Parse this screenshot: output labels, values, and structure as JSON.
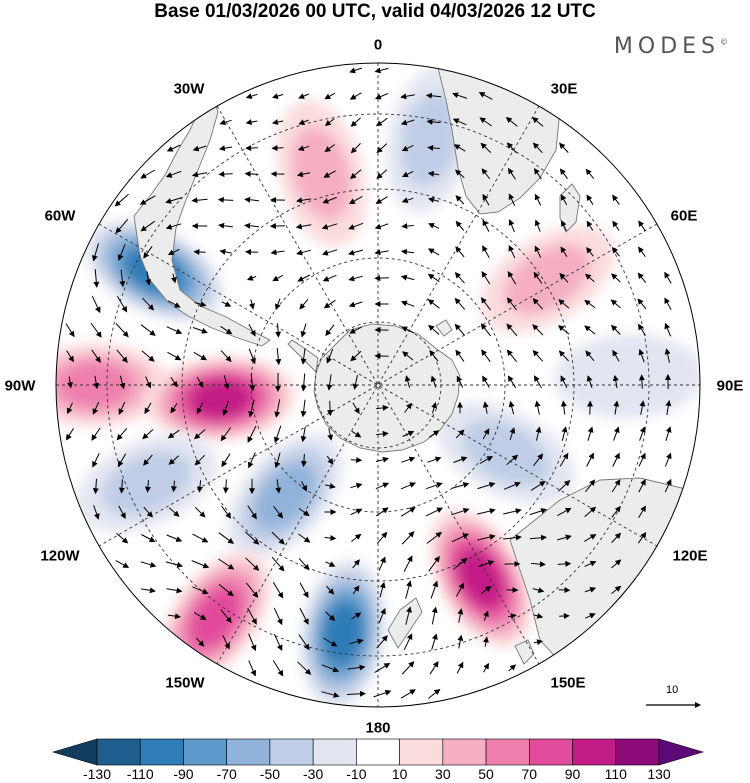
{
  "header": {
    "title": "Base 01/03/2026 00 UTC, valid 04/03/2026 12 UTC",
    "logo_text": "MODES",
    "logo_mark": "©"
  },
  "map": {
    "projection": "south polar stereographic",
    "lon_labels": {
      "l0": "0",
      "l30e": "30E",
      "l60e": "60E",
      "l90e": "90E",
      "l120e": "120E",
      "l150e": "150E",
      "l180": "180",
      "l150w": "150W",
      "l120w": "120W",
      "l90w": "90W",
      "l60w": "60W",
      "l30w": "30W"
    },
    "colors": {
      "land": "#ececec",
      "coast": "#777777",
      "grid": "#333333",
      "ocean": "#ffffff"
    }
  },
  "anomalies": [
    {
      "name": "pos-south-atlantic",
      "value": 50,
      "lon": -15,
      "r": 0.68
    },
    {
      "name": "neg-south-atlantic-east",
      "value": -40,
      "lon": 12,
      "r": 0.78
    },
    {
      "name": "pos-indian-ocean",
      "value": 40,
      "lon": 58,
      "r": 0.62
    },
    {
      "name": "neg-amundsen-drake",
      "value": -100,
      "lon": -63,
      "r": 0.78
    },
    {
      "name": "pos-se-pacific",
      "value": 70,
      "lon": -90,
      "r": 0.88
    },
    {
      "name": "pos-bellingshausen",
      "value": 100,
      "lon": -95,
      "r": 0.49
    },
    {
      "name": "neg-pacific-1",
      "value": -50,
      "lon": -113,
      "r": 0.78
    },
    {
      "name": "neg-pacific-2",
      "value": -60,
      "lon": -140,
      "r": 0.45
    },
    {
      "name": "pos-pacific",
      "value": 80,
      "lon": -145,
      "r": 0.88
    },
    {
      "name": "neg-ross-sea",
      "value": -110,
      "lon": -172,
      "r": 0.78
    },
    {
      "name": "pos-tasman",
      "value": 100,
      "lon": 152,
      "r": 0.68
    },
    {
      "name": "neg-southern-indian",
      "value": -50,
      "lon": 118,
      "r": 0.45
    },
    {
      "name": "neg-east-indian",
      "value": -30,
      "lon": 88,
      "r": 0.78
    }
  ],
  "reference_vector": {
    "label": "10"
  },
  "colorbar": {
    "labels": [
      "-130",
      "-110",
      "-90",
      "-70",
      "-50",
      "-30",
      "-10",
      "10",
      "30",
      "50",
      "70",
      "90",
      "110",
      "130"
    ],
    "colors": [
      "#123c5e",
      "#1f5e8e",
      "#2f7cb6",
      "#5d9acb",
      "#91b3d9",
      "#bfcde6",
      "#e3e6f1",
      "#ffffff",
      "#fbdcdc",
      "#f5aec2",
      "#ee7fae",
      "#e24c9c",
      "#c31c86",
      "#8e0c79",
      "#5d0a78"
    ]
  }
}
